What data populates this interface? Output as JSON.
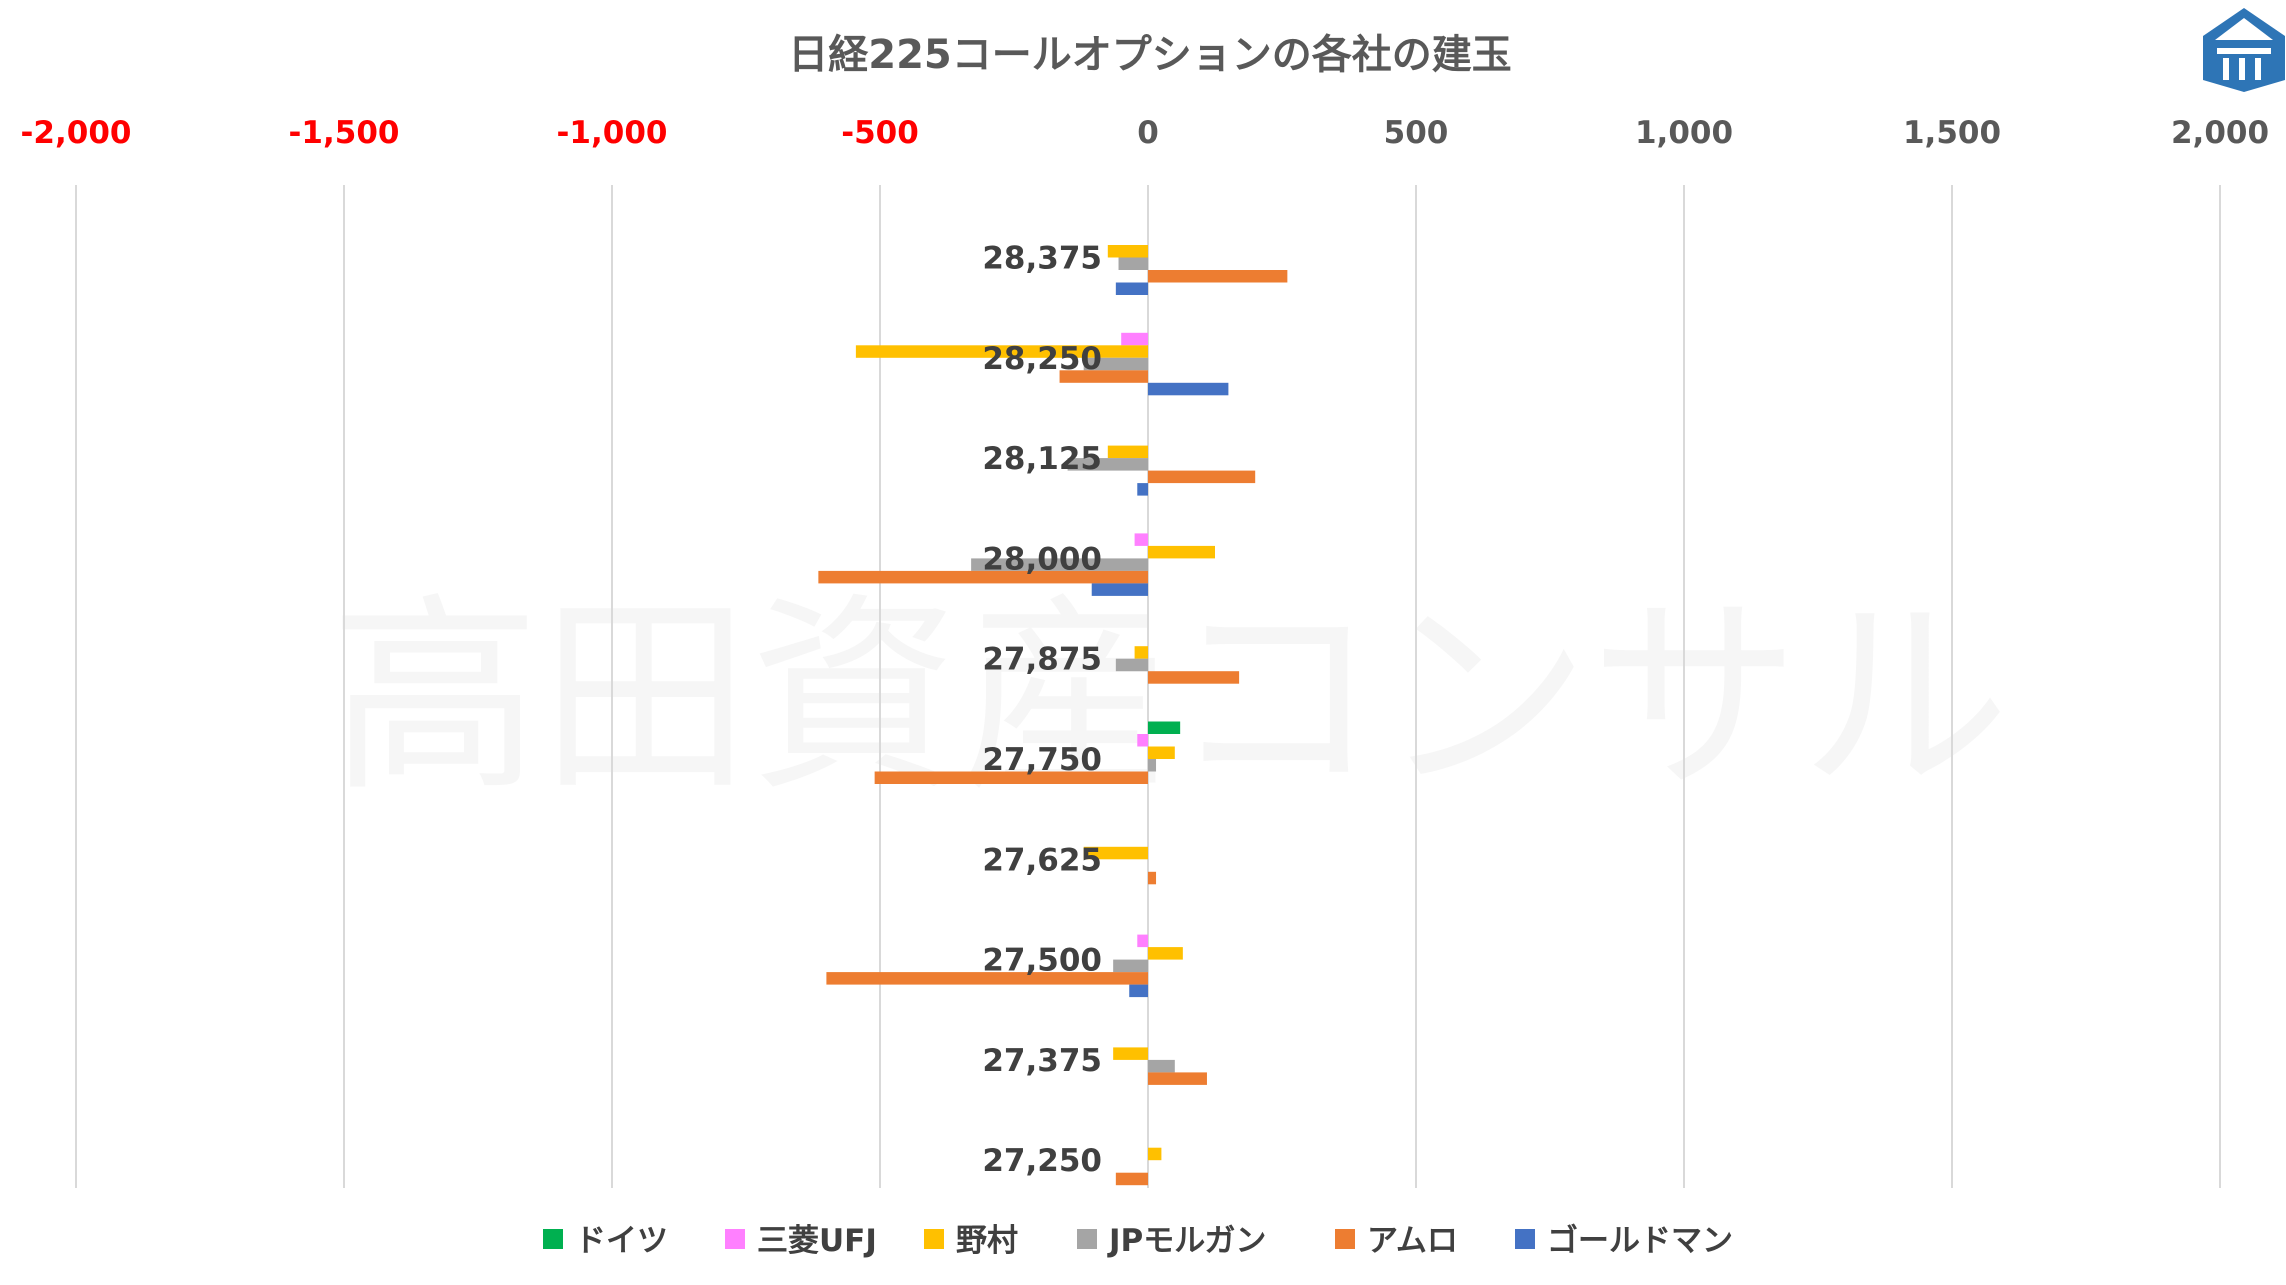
{
  "watermark": "高田資産コンサル",
  "colors": {
    "negative_tick": "#ff0000",
    "positive_tick": "#595959",
    "gridline": "#d9d9d9",
    "logo": "#2e75b6"
  },
  "chart_data": {
    "type": "bar",
    "orientation": "horizontal",
    "title": "日経225コールオプションの各社の建玉",
    "xlim": [
      -2000,
      2000
    ],
    "x_ticks": [
      -2000,
      -1500,
      -1000,
      -500,
      0,
      500,
      1000,
      1500,
      2000
    ],
    "x_tick_labels": [
      "-2,000",
      "-1,500",
      "-1,000",
      "-500",
      "0",
      "500",
      "1,000",
      "1,500",
      "2,000"
    ],
    "x_axis_position": "top",
    "grid": "vertical",
    "legend_position": "bottom",
    "categories": [
      "28,375",
      "28,250",
      "28,125",
      "28,000",
      "27,875",
      "27,750",
      "27,625",
      "27,500",
      "27,375",
      "27,250"
    ],
    "series": [
      {
        "name": "ドイツ",
        "color": "#00b050",
        "values": [
          0,
          0,
          0,
          0,
          0,
          60,
          0,
          0,
          0,
          0
        ]
      },
      {
        "name": "三菱UFJ",
        "color": "#ff80ff",
        "values": [
          0,
          -50,
          0,
          -25,
          0,
          -20,
          0,
          -20,
          0,
          0
        ]
      },
      {
        "name": "野村",
        "color": "#ffc000",
        "values": [
          -75,
          -545,
          -75,
          125,
          -25,
          50,
          -120,
          65,
          -65,
          25
        ]
      },
      {
        "name": "JPモルガン",
        "color": "#a5a5a5",
        "values": [
          -55,
          -120,
          -150,
          -330,
          -60,
          15,
          0,
          -65,
          50,
          0
        ]
      },
      {
        "name": "アムロ",
        "color": "#ed7d31",
        "values": [
          260,
          -165,
          200,
          -615,
          170,
          -510,
          15,
          -600,
          110,
          -60
        ]
      },
      {
        "name": "ゴールドマン",
        "color": "#4472c4",
        "values": [
          -60,
          150,
          -20,
          -105,
          0,
          0,
          0,
          -35,
          0,
          0
        ]
      }
    ]
  }
}
